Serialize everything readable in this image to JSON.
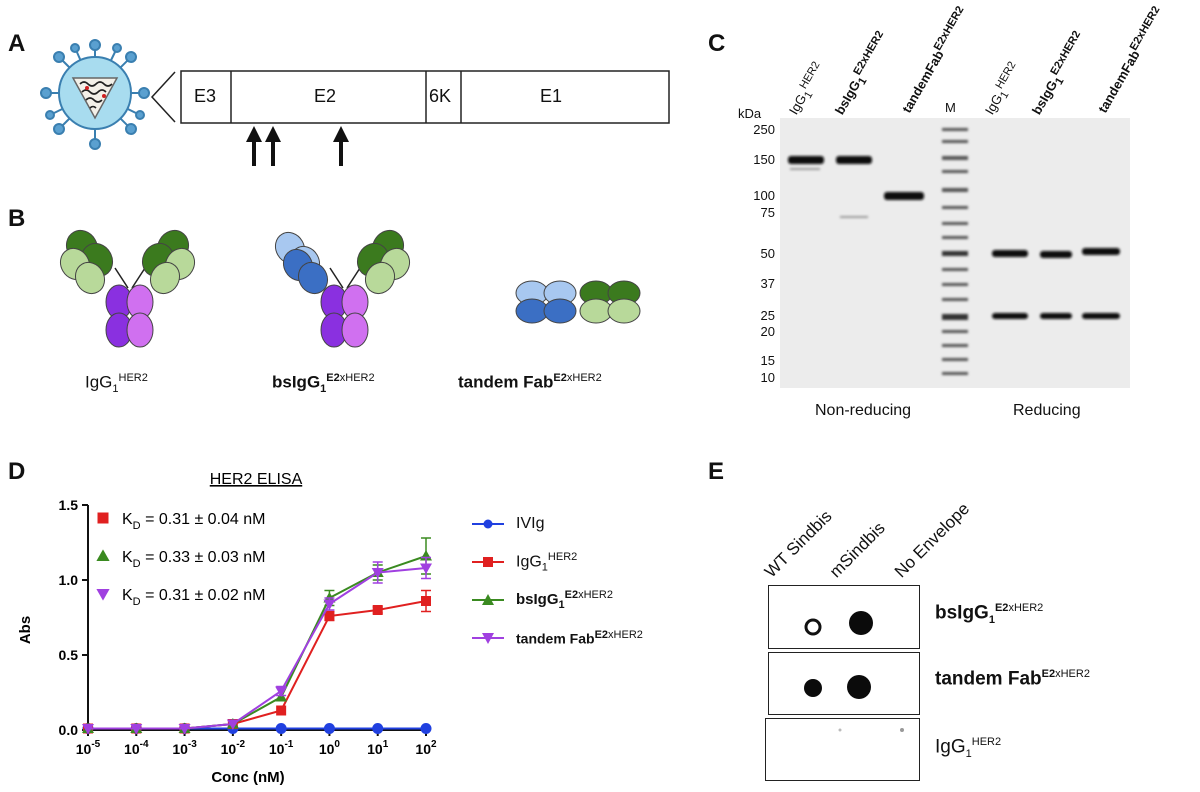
{
  "panels": {
    "a": "A",
    "b": "B",
    "c": "C",
    "d": "D",
    "e": "E"
  },
  "genome": {
    "segments": [
      "E3",
      "E2",
      "6K",
      "E1"
    ]
  },
  "constructs": [
    {
      "base": "IgG",
      "sub": "1",
      "sup": "HER2",
      "bold": false
    },
    {
      "base": "bsIgG",
      "sub": "1",
      "sup": "E2",
      "sup_rest": "xHER2",
      "bold": true
    },
    {
      "base": "tandem Fab",
      "sup": "E2",
      "sup_rest": "xHER2",
      "bold": true
    }
  ],
  "gel": {
    "unit": "kDa",
    "markers": [
      "250",
      "150",
      "100",
      "75",
      "50",
      "37",
      "25",
      "20",
      "15",
      "10"
    ],
    "lanes": [
      {
        "base": "IgG",
        "sub": "1",
        "sup": "HER2",
        "bold": false
      },
      {
        "base": "bsIgG",
        "sub": "1",
        "sup": "E2xHER2",
        "bold": true
      },
      {
        "base": "tandemFab",
        "sup": "E2xHER2",
        "bold": true
      },
      {
        "base": "M",
        "bold": false
      },
      {
        "base": "IgG",
        "sub": "1",
        "sup": "HER2",
        "bold": false
      },
      {
        "base": "bsIgG",
        "sub": "1",
        "sup": "E2xHER2",
        "bold": true
      },
      {
        "base": "tandemFab",
        "sup": "E2xHER2",
        "bold": true
      }
    ],
    "conditions": [
      "Non-reducing",
      "Reducing"
    ]
  },
  "chart_data": {
    "type": "line",
    "title": "HER2 ELISA",
    "xlabel": "Conc (nM)",
    "ylabel": "Abs",
    "x_scale": "log",
    "xlim": [
      1e-05,
      100
    ],
    "ylim": [
      0,
      1.5
    ],
    "x_ticks": [
      "10^-5",
      "10^-4",
      "10^-3",
      "10^-2",
      "10^-1",
      "10^0",
      "10^1",
      "10^2"
    ],
    "y_ticks": [
      "0.0",
      "0.5",
      "1.0",
      "1.5"
    ],
    "x": [
      1e-05,
      0.0001,
      0.001,
      0.01,
      0.1,
      1,
      10,
      100
    ],
    "series": [
      {
        "name": "IVIg",
        "color": "#2040e0",
        "marker": "circle",
        "values": [
          0.01,
          0.01,
          0.01,
          0.01,
          0.01,
          0.01,
          0.01,
          0.01
        ],
        "errors": [
          0,
          0,
          0,
          0,
          0,
          0,
          0,
          0
        ]
      },
      {
        "name": "IgG1 HER2",
        "color": "#e02020",
        "marker": "square",
        "values": [
          0.01,
          0.01,
          0.01,
          0.04,
          0.13,
          0.76,
          0.8,
          0.86
        ],
        "errors": [
          0,
          0,
          0,
          0,
          0,
          0.03,
          0.02,
          0.07
        ]
      },
      {
        "name": "bsIgG1 E2xHER2",
        "color": "#3a8a20",
        "marker": "triangle-up",
        "values": [
          0.01,
          0.01,
          0.01,
          0.04,
          0.22,
          0.88,
          1.05,
          1.16
        ],
        "errors": [
          0,
          0,
          0,
          0,
          0,
          0.05,
          0.05,
          0.12
        ]
      },
      {
        "name": "tandem Fab E2xHER2",
        "color": "#a040e0",
        "marker": "triangle-down",
        "values": [
          0.01,
          0.01,
          0.01,
          0.04,
          0.26,
          0.84,
          1.05,
          1.08
        ],
        "errors": [
          0,
          0,
          0,
          0,
          0.03,
          0.04,
          0.07,
          0.07
        ]
      }
    ],
    "kd_labels": [
      {
        "color": "#e02020",
        "marker": "square",
        "text": " = 0.31 ± 0.04 nM"
      },
      {
        "color": "#3a8a20",
        "marker": "triangle-up",
        "text": " = 0.33 ± 0.03 nM"
      },
      {
        "color": "#a040e0",
        "marker": "triangle-down",
        "text": " = 0.31 ± 0.02 nM"
      }
    ],
    "kd_symbol": "K",
    "kd_sub": "D",
    "legend": [
      {
        "base": "IVIg",
        "bold": false
      },
      {
        "base": "IgG",
        "sub": "1",
        "sup": "HER2",
        "bold": false
      },
      {
        "base": "bsIgG",
        "sub": "1",
        "sup": "E2",
        "sup_rest": "xHER2",
        "bold": true
      },
      {
        "base": "tandem Fab",
        "sup": "E2",
        "sup_rest": "xHER2",
        "bold": true
      }
    ],
    "legend_position": "right"
  },
  "dotblot": {
    "columns": [
      "WT Sindbis",
      "mSindbis",
      "No Envelope"
    ],
    "rows": [
      {
        "base": "bsIgG",
        "sub": "1",
        "sup": "E2",
        "sup_rest": "xHER2",
        "bold": true
      },
      {
        "base": "tandem Fab",
        "sup": "E2",
        "sup_rest": "xHER2",
        "bold": true
      },
      {
        "base": "IgG",
        "sub": "1",
        "sup": "HER2",
        "bold": false
      }
    ]
  }
}
